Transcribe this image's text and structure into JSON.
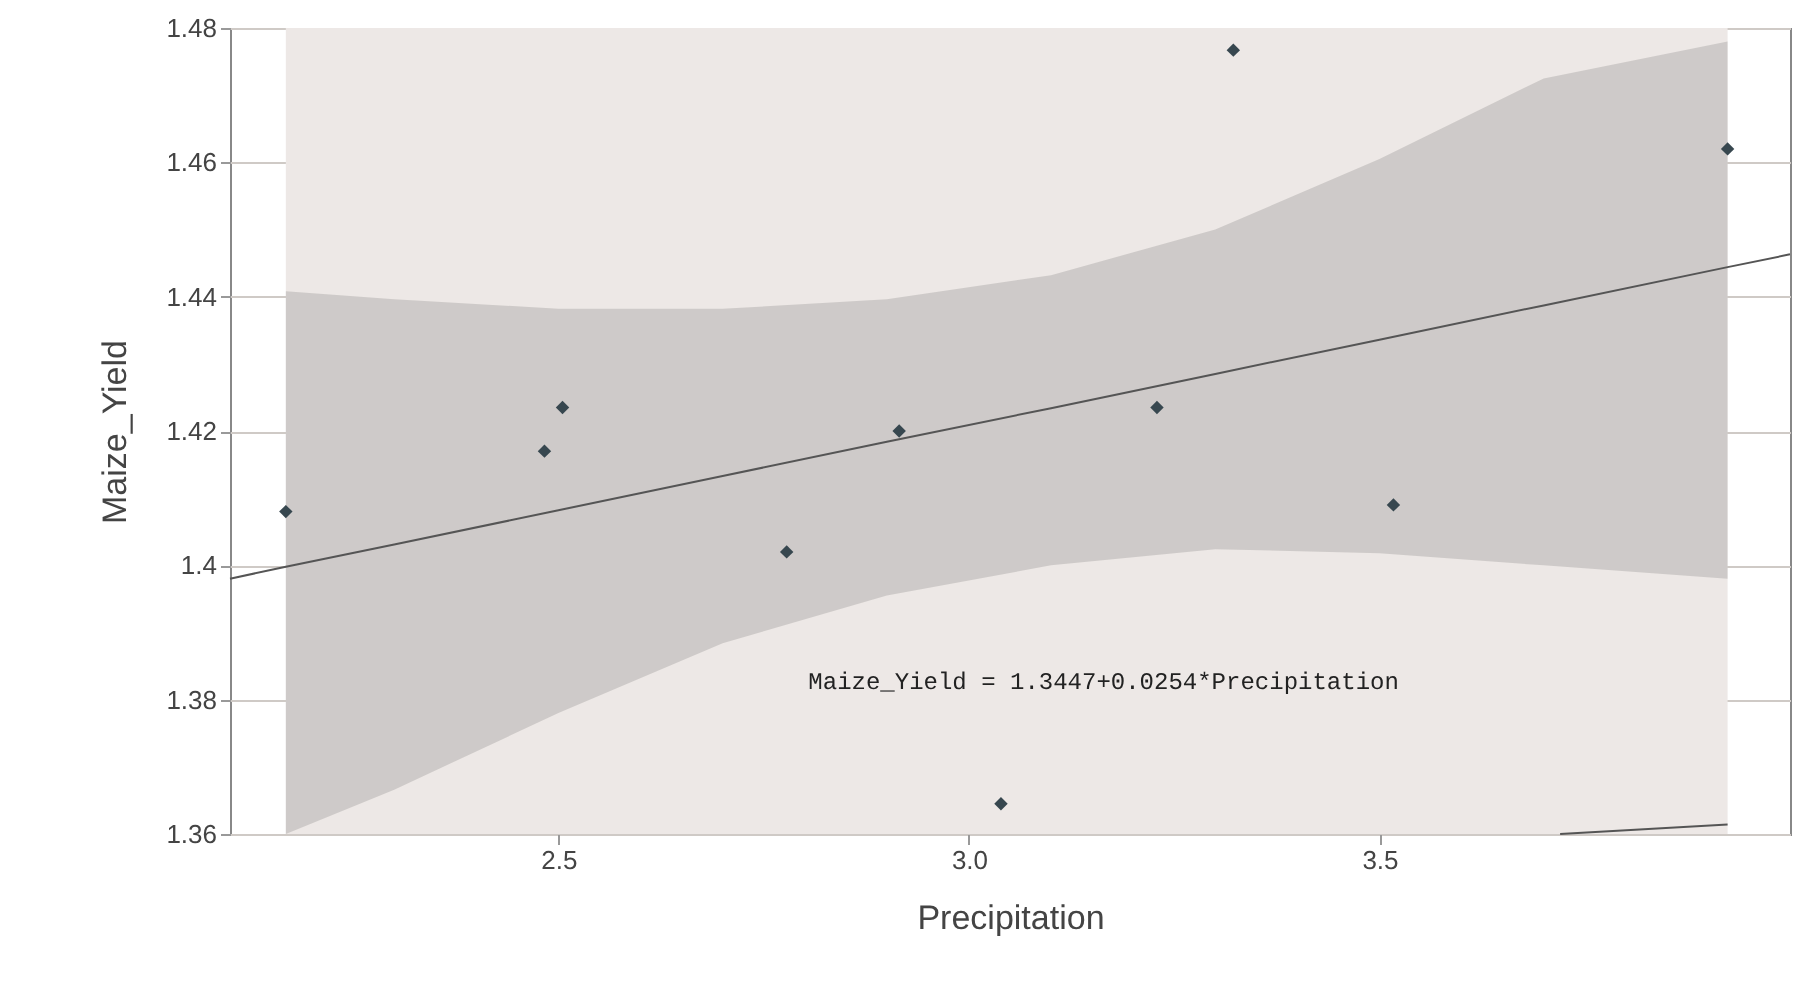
{
  "chart_data": {
    "type": "scatter",
    "xlabel": "Precipitation",
    "ylabel": "Maize_Yield",
    "xlim": [
      2.1,
      4.0
    ],
    "xticks": [
      2.5,
      {
        "value": 3,
        "label": "3.0"
      },
      3.5
    ],
    "ylim": [
      1.36,
      1.48
    ],
    "yticks": [
      1.36,
      1.38,
      1.4,
      1.42,
      1.44,
      1.46,
      1.48
    ],
    "grid": true,
    "bands": [
      {
        "axis": "x",
        "from": 2.168,
        "to": 3.924,
        "color": "#ede8e6"
      }
    ],
    "series": [
      {
        "type": "line",
        "marker": "none",
        "color": "#555555",
        "x": [
          2.1,
          2.168,
          2.3,
          2.5,
          2.7,
          2.9,
          3.1,
          3.3,
          3.5,
          3.7,
          3.924,
          4.0
        ],
        "values": [
          1.398,
          1.3998,
          1.4031,
          1.4082,
          1.4133,
          1.4184,
          1.4234,
          1.4285,
          1.4336,
          1.4387,
          1.4444,
          1.4463
        ],
        "lower": [
          null,
          1.36,
          1.3666,
          1.378,
          1.3884,
          1.3955,
          1.4,
          1.4024,
          1.4018,
          1.4,
          1.398,
          null
        ],
        "upper": [
          null,
          1.4408,
          1.4396,
          1.4382,
          1.4382,
          1.4396,
          1.4432,
          1.45,
          1.4605,
          1.4725,
          1.478,
          null
        ]
      },
      {
        "type": "line",
        "marker": "none",
        "color": "#555555",
        "x": [
          3.72,
          3.924
        ],
        "values": [
          1.36,
          1.3614
        ]
      },
      {
        "type": "scatter",
        "marker": "diamond",
        "color": "#37474f",
        "x": [
          2.168,
          2.483,
          2.505,
          2.778,
          2.915,
          3.039,
          3.229,
          3.322,
          3.517,
          3.924
        ],
        "values": [
          1.408,
          1.417,
          1.4235,
          1.402,
          1.42,
          1.3645,
          1.4235,
          1.4767,
          1.409,
          1.462
        ]
      }
    ],
    "annotations": [
      "Maize_Yield = 1.3447+0.0254*Precipitation"
    ]
  }
}
